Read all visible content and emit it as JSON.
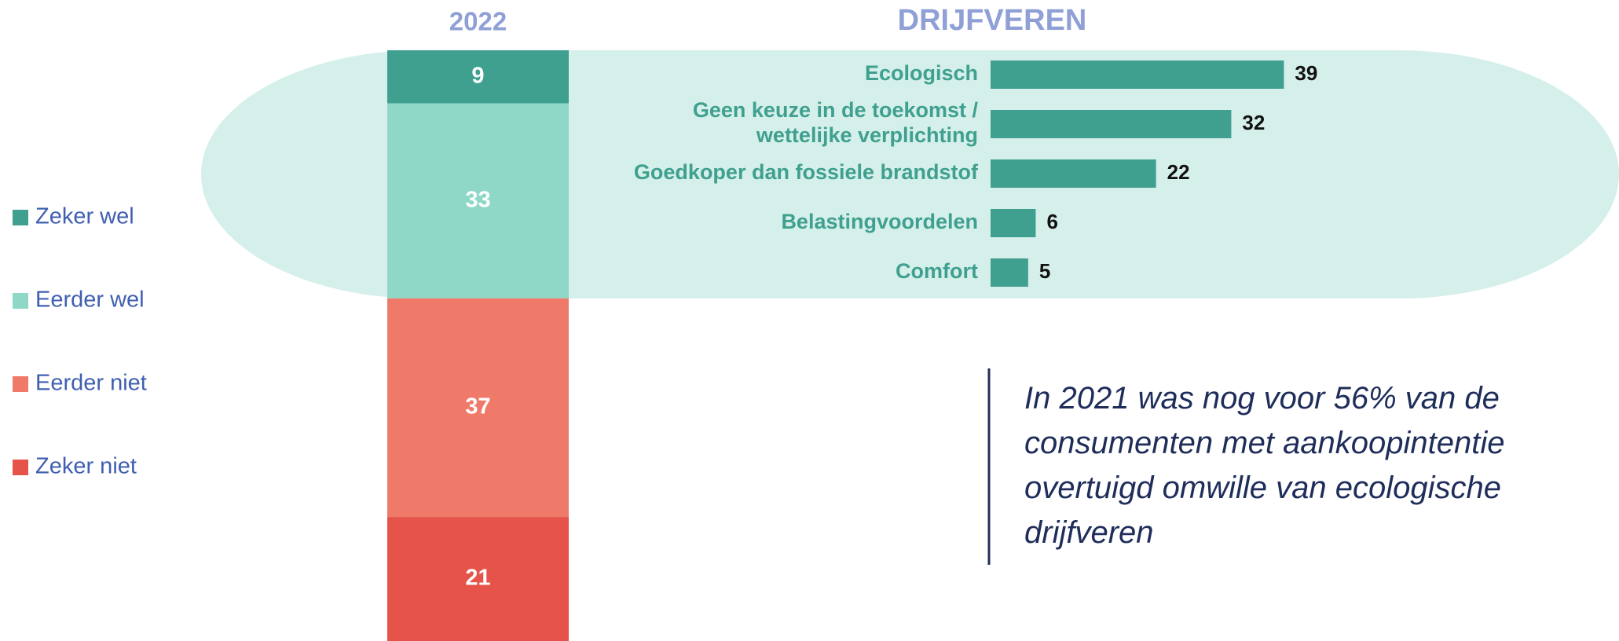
{
  "chart_data": [
    {
      "type": "stacked-bar",
      "title": "2022",
      "categories": [
        "2022"
      ],
      "ylim": [
        0,
        100
      ],
      "series": [
        {
          "name": "Zeker wel",
          "color": "#3fa08f",
          "values": [
            9
          ]
        },
        {
          "name": "Eerder wel",
          "color": "#8fd8c8",
          "values": [
            33
          ]
        },
        {
          "name": "Eerder niet",
          "color": "#f07a6a",
          "values": [
            37
          ]
        },
        {
          "name": "Zeker niet",
          "color": "#e5534b",
          "values": [
            21
          ]
        }
      ]
    },
    {
      "type": "hbar",
      "title": "DRIJFVEREN",
      "color": "#3fa08f",
      "xlim": [
        0,
        40
      ],
      "categories": [
        "Ecologisch",
        "Geen keuze in de toekomst /\nwettelijke verplichting",
        "Goedkoper dan fossiele brandstof",
        "Belastingvoordelen",
        "Comfort"
      ],
      "values": [
        39,
        32,
        22,
        6,
        5
      ],
      "annotation": "In 2021 was nog voor 56% van de\nconsumenten met aankoopintentie\novertuigd omwille van ecologische\ndrijfveren"
    }
  ]
}
